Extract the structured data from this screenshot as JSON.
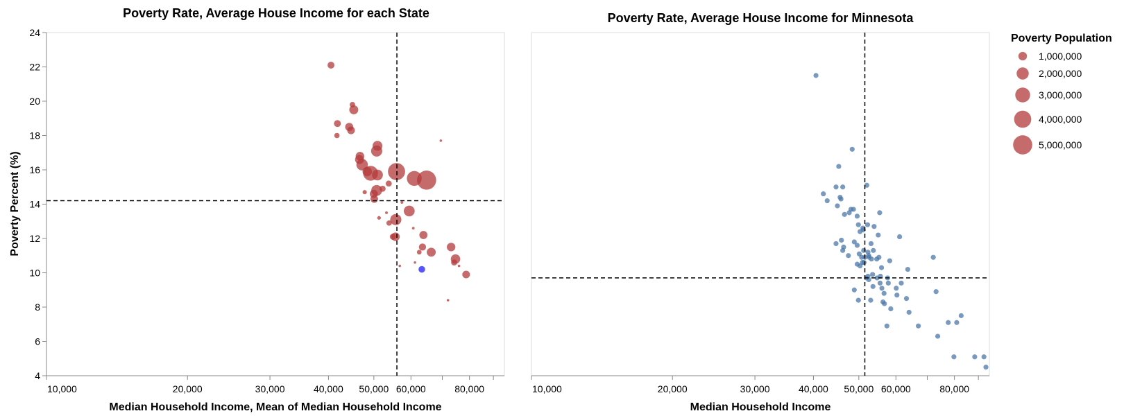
{
  "chart_data": [
    {
      "type": "scatter",
      "title": "Poverty Rate, Average House Income for each State",
      "xlabel": "Median Household Income, Mean of Median Household Income",
      "ylabel": "Poverty Percent (%)",
      "xscale": "log",
      "xlim": [
        10000,
        95000
      ],
      "ylim": [
        4,
        24
      ],
      "xticks": [
        10000,
        20000,
        30000,
        40000,
        50000,
        60000,
        80000
      ],
      "xtick_labels": [
        "10,000",
        "20,000",
        "30,000",
        "40,000",
        "50,000",
        "60,000",
        "80,000"
      ],
      "yticks": [
        4,
        6,
        8,
        10,
        12,
        14,
        16,
        18,
        20,
        22,
        24
      ],
      "mean_x": 56000,
      "mean_y": 14.2,
      "point_color": "#b33a3a",
      "highlight_color": "#4444ff",
      "points": [
        {
          "x": 40500,
          "y": 22.1,
          "pop": 650000
        },
        {
          "x": 45000,
          "y": 19.8,
          "pop": 400000
        },
        {
          "x": 45300,
          "y": 19.5,
          "pop": 1100000
        },
        {
          "x": 41800,
          "y": 18.7,
          "pop": 650000
        },
        {
          "x": 41700,
          "y": 18.0,
          "pop": 380000
        },
        {
          "x": 44300,
          "y": 18.5,
          "pop": 900000
        },
        {
          "x": 44700,
          "y": 18.3,
          "pop": 800000
        },
        {
          "x": 50900,
          "y": 17.4,
          "pop": 1300000
        },
        {
          "x": 50700,
          "y": 17.1,
          "pop": 1700000
        },
        {
          "x": 69500,
          "y": 17.7,
          "pop": 60000
        },
        {
          "x": 46700,
          "y": 16.8,
          "pop": 1000000
        },
        {
          "x": 46600,
          "y": 16.6,
          "pop": 1100000
        },
        {
          "x": 47200,
          "y": 16.3,
          "pop": 1800000
        },
        {
          "x": 48400,
          "y": 15.9,
          "pop": 1200000
        },
        {
          "x": 49200,
          "y": 15.8,
          "pop": 3000000
        },
        {
          "x": 50900,
          "y": 15.7,
          "pop": 1600000
        },
        {
          "x": 55900,
          "y": 15.9,
          "pop": 4000000
        },
        {
          "x": 61000,
          "y": 15.5,
          "pop": 3000000
        },
        {
          "x": 64800,
          "y": 15.4,
          "pop": 5000000
        },
        {
          "x": 53800,
          "y": 15.2,
          "pop": 500000
        },
        {
          "x": 50700,
          "y": 14.8,
          "pop": 1600000
        },
        {
          "x": 50000,
          "y": 14.6,
          "pop": 900000
        },
        {
          "x": 52200,
          "y": 14.9,
          "pop": 500000
        },
        {
          "x": 47800,
          "y": 14.7,
          "pop": 250000
        },
        {
          "x": 50100,
          "y": 14.3,
          "pop": 800000
        },
        {
          "x": 57400,
          "y": 14.1,
          "pop": 100000
        },
        {
          "x": 53200,
          "y": 13.5,
          "pop": 100000
        },
        {
          "x": 59500,
          "y": 13.6,
          "pop": 1600000
        },
        {
          "x": 51300,
          "y": 13.2,
          "pop": 180000
        },
        {
          "x": 53900,
          "y": 12.9,
          "pop": 400000
        },
        {
          "x": 55700,
          "y": 13.1,
          "pop": 1700000
        },
        {
          "x": 60700,
          "y": 12.6,
          "pop": 100000
        },
        {
          "x": 54900,
          "y": 12.1,
          "pop": 500000
        },
        {
          "x": 55600,
          "y": 12.1,
          "pop": 1000000
        },
        {
          "x": 63800,
          "y": 12.2,
          "pop": 900000
        },
        {
          "x": 73100,
          "y": 11.5,
          "pop": 1000000
        },
        {
          "x": 63500,
          "y": 11.5,
          "pop": 700000
        },
        {
          "x": 62500,
          "y": 11.2,
          "pop": 300000
        },
        {
          "x": 66300,
          "y": 11.2,
          "pop": 1100000
        },
        {
          "x": 61200,
          "y": 10.6,
          "pop": 60000
        },
        {
          "x": 74700,
          "y": 10.8,
          "pop": 1200000
        },
        {
          "x": 74200,
          "y": 10.6,
          "pop": 500000
        },
        {
          "x": 76000,
          "y": 10.4,
          "pop": 60000
        },
        {
          "x": 56800,
          "y": 10.4,
          "pop": 60000
        },
        {
          "x": 78700,
          "y": 9.9,
          "pop": 800000
        },
        {
          "x": 72000,
          "y": 8.4,
          "pop": 80000
        },
        {
          "x": 63300,
          "y": 10.2,
          "pop": 600000,
          "highlight": true
        }
      ]
    },
    {
      "type": "scatter",
      "title": "Poverty Rate, Average House Income for Minnesota",
      "xlabel": "Median Household Income",
      "ylabel": "",
      "xscale": "log",
      "xlim": [
        10000,
        95000
      ],
      "ylim": [
        4,
        24
      ],
      "xticks": [
        10000,
        20000,
        30000,
        40000,
        50000,
        60000,
        80000
      ],
      "xtick_labels": [
        "10,000",
        "20,000",
        "30,000",
        "40,000",
        "50,000",
        "60,000",
        "80,000"
      ],
      "mean_x": 51500,
      "mean_y": 9.7,
      "point_color": "#4c78a8",
      "points": [
        [
          40500,
          21.5
        ],
        [
          48400,
          17.2
        ],
        [
          45300,
          16.2
        ],
        [
          52000,
          15.1
        ],
        [
          44700,
          15.0
        ],
        [
          46200,
          15.0
        ],
        [
          42000,
          14.6
        ],
        [
          42800,
          14.2
        ],
        [
          45600,
          14.4
        ],
        [
          45800,
          14.3
        ],
        [
          45000,
          13.9
        ],
        [
          48100,
          13.7
        ],
        [
          48700,
          13.7
        ],
        [
          47700,
          13.5
        ],
        [
          46600,
          13.4
        ],
        [
          49600,
          13.3
        ],
        [
          55400,
          13.5
        ],
        [
          53900,
          12.7
        ],
        [
          51000,
          12.6
        ],
        [
          52200,
          12.8
        ],
        [
          49900,
          12.8
        ],
        [
          51100,
          12.5
        ],
        [
          50300,
          12.4
        ],
        [
          61100,
          12.1
        ],
        [
          55000,
          12.2
        ],
        [
          48900,
          11.8
        ],
        [
          49600,
          11.6
        ],
        [
          45900,
          11.9
        ],
        [
          44700,
          11.7
        ],
        [
          46400,
          11.5
        ],
        [
          46200,
          11.3
        ],
        [
          53100,
          11.7
        ],
        [
          51200,
          11.3
        ],
        [
          52300,
          11.2
        ],
        [
          52500,
          11.0
        ],
        [
          53700,
          11.3
        ],
        [
          47500,
          11.0
        ],
        [
          50100,
          11.1
        ],
        [
          50700,
          10.9
        ],
        [
          51500,
          10.9
        ],
        [
          52600,
          10.9
        ],
        [
          53200,
          10.8
        ],
        [
          51300,
          10.6
        ],
        [
          54600,
          10.8
        ],
        [
          55200,
          10.9
        ],
        [
          58200,
          10.7
        ],
        [
          72100,
          10.9
        ],
        [
          50300,
          10.4
        ],
        [
          50900,
          10.6
        ],
        [
          49600,
          10.5
        ],
        [
          55900,
          10.3
        ],
        [
          63600,
          10.2
        ],
        [
          52300,
          9.8
        ],
        [
          53500,
          9.9
        ],
        [
          54700,
          9.7
        ],
        [
          55600,
          9.8
        ],
        [
          57600,
          9.7
        ],
        [
          52500,
          9.6
        ],
        [
          51900,
          9.7
        ],
        [
          55500,
          9.4
        ],
        [
          57800,
          9.4
        ],
        [
          61600,
          9.4
        ],
        [
          56000,
          9.1
        ],
        [
          60100,
          9.1
        ],
        [
          53600,
          9.2
        ],
        [
          48900,
          9.0
        ],
        [
          56600,
          8.8
        ],
        [
          60300,
          8.7
        ],
        [
          63200,
          8.5
        ],
        [
          73100,
          8.9
        ],
        [
          49900,
          8.4
        ],
        [
          53000,
          8.4
        ],
        [
          56300,
          8.3
        ],
        [
          56700,
          8.2
        ],
        [
          58500,
          7.9
        ],
        [
          64000,
          7.7
        ],
        [
          67000,
          6.9
        ],
        [
          57400,
          6.9
        ],
        [
          73700,
          6.3
        ],
        [
          77600,
          7.1
        ],
        [
          80900,
          7.1
        ],
        [
          82700,
          7.5
        ],
        [
          79800,
          5.1
        ],
        [
          88400,
          5.1
        ],
        [
          92500,
          5.1
        ],
        [
          93400,
          4.5
        ]
      ]
    }
  ],
  "legend": {
    "title": "Poverty Population",
    "entries": [
      {
        "label": "1,000,000",
        "value": 1000000
      },
      {
        "label": "2,000,000",
        "value": 2000000
      },
      {
        "label": "3,000,000",
        "value": 3000000
      },
      {
        "label": "4,000,000",
        "value": 4000000
      },
      {
        "label": "5,000,000",
        "value": 5000000
      }
    ]
  }
}
